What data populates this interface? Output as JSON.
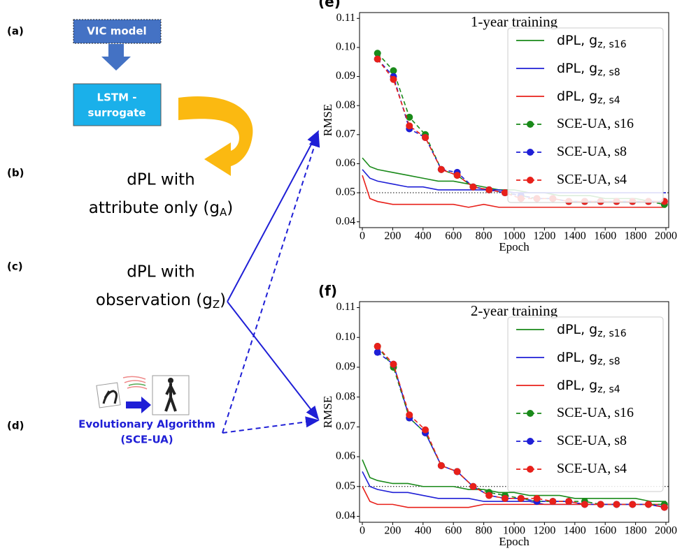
{
  "diagram": {
    "labels": [
      "(a)",
      "(b)",
      "(c)",
      "(d)"
    ],
    "vic": "VIC model",
    "lstm": [
      "LSTM -",
      "surrogate"
    ],
    "attr": {
      "line1": "dPL with",
      "pre": "attribute only (g",
      "sub": "A",
      "post": ")"
    },
    "obs": {
      "line1": "dPL with",
      "pre": "observation (g",
      "sub": "Z",
      "post": ")"
    },
    "ea": [
      "Evolutionary Algorithm",
      "(SCE-UA)"
    ]
  },
  "chart_data": [
    {
      "type": "line",
      "panel": "(e)",
      "title": "1-year training",
      "xlabel": "Epoch",
      "ylabel": "RMSE",
      "xlim": [
        0,
        2000
      ],
      "ylim": [
        0.038,
        0.112
      ],
      "xticks": [
        0,
        200,
        400,
        600,
        800,
        1000,
        1200,
        1400,
        1600,
        1800,
        2000
      ],
      "yticks": [
        0.04,
        0.05,
        0.06,
        0.07,
        0.08,
        0.09,
        {
          "value": 0.1,
          "label": "0.10"
        },
        0.11
      ],
      "reference_line": 0.05,
      "series": [
        {
          "name": "dPL, g",
          "subscript": "z, s16",
          "color": "#1a8a1a",
          "style": "solid",
          "x": [
            0,
            50,
            100,
            200,
            300,
            400,
            500,
            600,
            700,
            800,
            900,
            1000,
            1100,
            1200,
            1300,
            1400,
            1500,
            1600,
            1700,
            1800,
            1900,
            2000
          ],
          "values": [
            0.062,
            0.059,
            0.058,
            0.057,
            0.056,
            0.055,
            0.054,
            0.054,
            0.053,
            0.052,
            0.051,
            0.051,
            0.05,
            0.05,
            0.049,
            0.049,
            0.049,
            0.048,
            0.048,
            0.048,
            0.047,
            0.047
          ]
        },
        {
          "name": "dPL, g",
          "subscript": "z, s8",
          "color": "#1f1fd6",
          "style": "solid",
          "x": [
            0,
            50,
            100,
            200,
            300,
            400,
            500,
            600,
            700,
            800,
            900,
            1000,
            1100,
            1200,
            1300,
            1400,
            1500,
            1600,
            1700,
            1800,
            1900,
            2000
          ],
          "values": [
            0.058,
            0.055,
            0.054,
            0.053,
            0.052,
            0.052,
            0.051,
            0.051,
            0.051,
            0.051,
            0.051,
            0.05,
            0.05,
            0.05,
            0.05,
            0.05,
            0.05,
            0.05,
            0.05,
            0.05,
            0.05,
            0.05
          ]
        },
        {
          "name": "dPL, g",
          "subscript": "z, s4",
          "color": "#e8201a",
          "style": "solid",
          "x": [
            0,
            50,
            100,
            200,
            300,
            400,
            500,
            600,
            700,
            800,
            900,
            1000,
            1100,
            1200,
            1300,
            1400,
            1500,
            1600,
            1700,
            1800,
            1900,
            2000
          ],
          "values": [
            0.056,
            0.048,
            0.047,
            0.046,
            0.046,
            0.046,
            0.046,
            0.046,
            0.045,
            0.046,
            0.045,
            0.045,
            0.045,
            0.045,
            0.045,
            0.045,
            0.045,
            0.045,
            0.045,
            0.045,
            0.045,
            0.045
          ]
        },
        {
          "name": "SCE-UA, s16",
          "color": "#1a8a1a",
          "style": "dashed",
          "x": [
            100,
            205,
            310,
            415,
            520,
            625,
            730,
            835,
            940,
            1045,
            1150,
            1255,
            1360,
            1465,
            1570,
            1675,
            1780,
            1885,
            1990
          ],
          "values": [
            0.098,
            0.092,
            0.076,
            0.07,
            0.058,
            0.056,
            0.052,
            0.051,
            0.05,
            0.049,
            0.048,
            0.048,
            0.047,
            0.047,
            0.047,
            0.047,
            0.047,
            0.047,
            0.046
          ]
        },
        {
          "name": "SCE-UA, s8",
          "color": "#1f1fd6",
          "style": "dashed",
          "x": [
            100,
            205,
            310,
            415,
            520,
            625,
            730,
            835,
            940,
            1045,
            1150,
            1255,
            1360,
            1465,
            1570,
            1675,
            1780,
            1885,
            1990
          ],
          "values": [
            0.096,
            0.09,
            0.072,
            0.069,
            0.058,
            0.057,
            0.052,
            0.051,
            0.05,
            0.049,
            0.048,
            0.048,
            0.047,
            0.047,
            0.047,
            0.047,
            0.047,
            0.047,
            0.047
          ]
        },
        {
          "name": "SCE-UA, s4",
          "color": "#e8201a",
          "style": "dashed",
          "x": [
            100,
            205,
            310,
            415,
            520,
            625,
            730,
            835,
            940,
            1045,
            1150,
            1255,
            1360,
            1465,
            1570,
            1675,
            1780,
            1885,
            1990
          ],
          "values": [
            0.096,
            0.089,
            0.073,
            0.069,
            0.058,
            0.056,
            0.052,
            0.051,
            0.05,
            0.048,
            0.048,
            0.048,
            0.047,
            0.047,
            0.047,
            0.047,
            0.047,
            0.047,
            0.047
          ]
        }
      ]
    },
    {
      "type": "line",
      "panel": "(f)",
      "title": "2-year training",
      "xlabel": "Epoch",
      "ylabel": "RMSE",
      "xlim": [
        0,
        2000
      ],
      "ylim": [
        0.038,
        0.112
      ],
      "xticks": [
        0,
        200,
        400,
        600,
        800,
        1000,
        1200,
        1400,
        1600,
        1800,
        2000
      ],
      "yticks": [
        0.04,
        0.05,
        0.06,
        0.07,
        0.08,
        0.09,
        {
          "value": 0.1,
          "label": "0.10"
        },
        0.11
      ],
      "reference_line": 0.05,
      "series": [
        {
          "name": "dPL, g",
          "subscript": "z, s16",
          "color": "#1a8a1a",
          "style": "solid",
          "x": [
            0,
            50,
            100,
            200,
            300,
            400,
            500,
            600,
            700,
            800,
            900,
            1000,
            1100,
            1200,
            1300,
            1400,
            1500,
            1600,
            1700,
            1800,
            1900,
            2000
          ],
          "values": [
            0.059,
            0.053,
            0.052,
            0.051,
            0.051,
            0.05,
            0.05,
            0.05,
            0.049,
            0.049,
            0.048,
            0.048,
            0.047,
            0.047,
            0.047,
            0.046,
            0.046,
            0.046,
            0.046,
            0.046,
            0.045,
            0.045
          ]
        },
        {
          "name": "dPL, g",
          "subscript": "z, s8",
          "color": "#1f1fd6",
          "style": "solid",
          "x": [
            0,
            50,
            100,
            200,
            300,
            400,
            500,
            600,
            700,
            800,
            900,
            1000,
            1100,
            1200,
            1300,
            1400,
            1500,
            1600,
            1700,
            1800,
            1900,
            2000
          ],
          "values": [
            0.055,
            0.05,
            0.049,
            0.048,
            0.048,
            0.047,
            0.046,
            0.046,
            0.046,
            0.045,
            0.045,
            0.045,
            0.045,
            0.044,
            0.044,
            0.044,
            0.044,
            0.044,
            0.044,
            0.044,
            0.044,
            0.043
          ]
        },
        {
          "name": "dPL, g",
          "subscript": "z, s4",
          "color": "#e8201a",
          "style": "solid",
          "x": [
            0,
            50,
            100,
            200,
            300,
            400,
            500,
            600,
            700,
            800,
            900,
            1000,
            1100,
            1200,
            1300,
            1400,
            1500,
            1600,
            1700,
            1800,
            1900,
            2000
          ],
          "values": [
            0.05,
            0.045,
            0.044,
            0.044,
            0.043,
            0.043,
            0.043,
            0.043,
            0.043,
            0.044,
            0.044,
            0.044,
            0.044,
            0.044,
            0.044,
            0.044,
            0.044,
            0.044,
            0.044,
            0.044,
            0.044,
            0.044
          ]
        },
        {
          "name": "SCE-UA, s16",
          "color": "#1a8a1a",
          "style": "dashed",
          "x": [
            100,
            205,
            310,
            415,
            520,
            625,
            730,
            835,
            940,
            1045,
            1150,
            1255,
            1360,
            1465,
            1570,
            1675,
            1780,
            1885,
            1990
          ],
          "values": [
            0.097,
            0.09,
            0.073,
            0.068,
            0.057,
            0.055,
            0.05,
            0.048,
            0.047,
            0.046,
            0.045,
            0.045,
            0.045,
            0.045,
            0.044,
            0.044,
            0.044,
            0.044,
            0.044
          ]
        },
        {
          "name": "SCE-UA, s8",
          "color": "#1f1fd6",
          "style": "dashed",
          "x": [
            100,
            205,
            310,
            415,
            520,
            625,
            730,
            835,
            940,
            1045,
            1150,
            1255,
            1360,
            1465,
            1570,
            1675,
            1780,
            1885,
            1990
          ],
          "values": [
            0.095,
            0.091,
            0.073,
            0.068,
            0.057,
            0.055,
            0.05,
            0.047,
            0.046,
            0.046,
            0.045,
            0.045,
            0.045,
            0.044,
            0.044,
            0.044,
            0.044,
            0.044,
            0.043
          ]
        },
        {
          "name": "SCE-UA, s4",
          "color": "#e8201a",
          "style": "dashed",
          "x": [
            100,
            205,
            310,
            415,
            520,
            625,
            730,
            835,
            940,
            1045,
            1150,
            1255,
            1360,
            1465,
            1570,
            1675,
            1780,
            1885,
            1990
          ],
          "values": [
            0.097,
            0.091,
            0.074,
            0.069,
            0.057,
            0.055,
            0.05,
            0.047,
            0.046,
            0.046,
            0.046,
            0.045,
            0.045,
            0.044,
            0.044,
            0.044,
            0.044,
            0.044,
            0.043
          ]
        }
      ]
    }
  ]
}
